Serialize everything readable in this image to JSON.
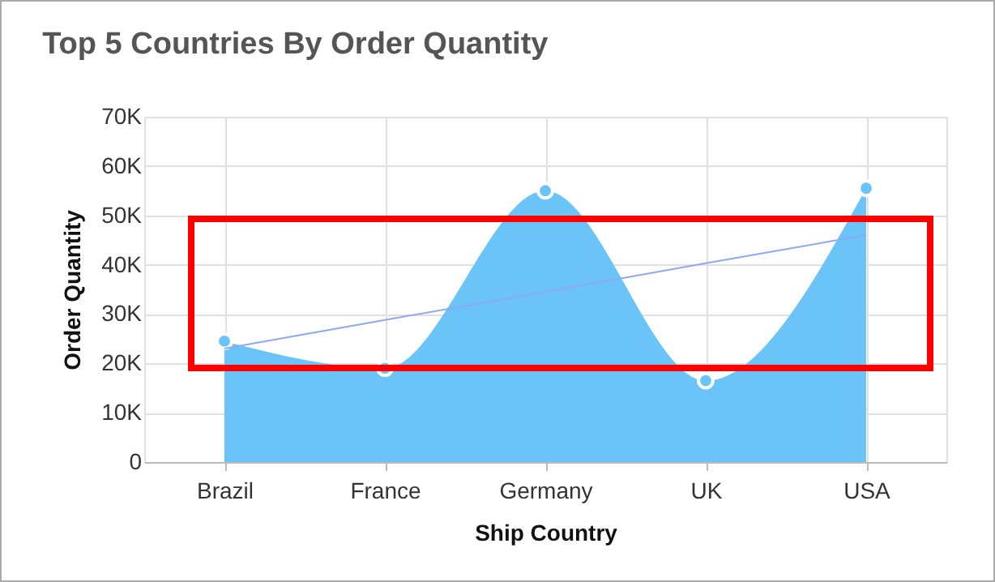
{
  "chart_data": {
    "type": "area",
    "title": "Top 5 Countries By Order Quantity",
    "xlabel": "Ship Country",
    "ylabel": "Order Quantity",
    "categories": [
      "Brazil",
      "France",
      "Germany",
      "UK",
      "USA"
    ],
    "series": [
      {
        "color": "#6ac4f7",
        "marker": "circle",
        "values": [
          24500,
          19000,
          55000,
          16500,
          55500
        ]
      },
      {
        "type": "line",
        "color": "#8ea8f5",
        "marker": "none",
        "values": [
          23000,
          28800,
          34500,
          40300,
          46000
        ]
      }
    ],
    "ylim": [
      0,
      70000
    ],
    "yticks": [
      0,
      {
        "value": 10000,
        "label": "10K"
      },
      {
        "value": 20000,
        "label": "20K"
      },
      {
        "value": 30000,
        "label": "30K"
      },
      {
        "value": 40000,
        "label": "40K"
      },
      {
        "value": 50000,
        "label": "50K"
      },
      {
        "value": 60000,
        "label": "60K"
      },
      {
        "value": 70000,
        "label": "70K"
      }
    ],
    "grid": true
  }
}
